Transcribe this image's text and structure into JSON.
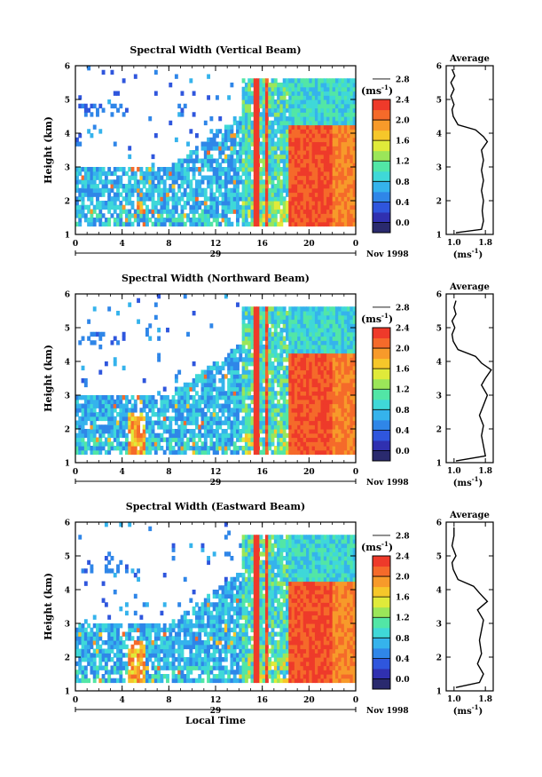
{
  "chart_data": [
    {
      "type": "heatmap",
      "title": "Spectral Width (Vertical Beam)",
      "ylabel": "Height (km)",
      "xlim": [
        0,
        24
      ],
      "ylim": [
        1,
        6
      ],
      "x_ticks": [
        "0",
        "4",
        "8",
        "12",
        "16",
        "20",
        "0"
      ],
      "y_ticks": [
        "1",
        "2",
        "3",
        "4",
        "5",
        "6"
      ],
      "date_label": "29",
      "month_year_label": "Nov 1998",
      "colorbar": {
        "unit": "(ms",
        "unit_exp": "-1",
        "unit_close": ")",
        "ticks": [
          "0.0",
          "0.4",
          "0.8",
          "1.2",
          "1.6",
          "2.0",
          "2.4",
          "2.8"
        ]
      },
      "average_profile": {
        "title": "Average",
        "xlabel": "(ms",
        "xlabel_exp": "-1",
        "xlabel_close": ")",
        "x_ticks": [
          "1.0",
          "1.8"
        ],
        "y_ticks": [
          "1",
          "2",
          "3",
          "4",
          "5",
          "6"
        ],
        "points": [
          [
            1.05,
            1.05
          ],
          [
            1.7,
            1.15
          ],
          [
            1.75,
            1.4
          ],
          [
            1.72,
            1.7
          ],
          [
            1.75,
            2.0
          ],
          [
            1.7,
            2.3
          ],
          [
            1.75,
            2.6
          ],
          [
            1.7,
            2.9
          ],
          [
            1.75,
            3.2
          ],
          [
            1.7,
            3.5
          ],
          [
            1.85,
            3.75
          ],
          [
            1.75,
            3.9
          ],
          [
            1.55,
            4.1
          ],
          [
            1.1,
            4.25
          ],
          [
            0.98,
            4.5
          ],
          [
            0.95,
            4.7
          ],
          [
            1.0,
            4.85
          ],
          [
            0.92,
            5.1
          ],
          [
            1.0,
            5.3
          ],
          [
            0.92,
            5.5
          ],
          [
            1.02,
            5.7
          ],
          [
            0.95,
            5.9
          ]
        ]
      }
    },
    {
      "type": "heatmap",
      "title": "Spectral Width (Northward Beam)",
      "ylabel": "Height (km)",
      "xlim": [
        0,
        24
      ],
      "ylim": [
        1,
        6
      ],
      "x_ticks": [
        "0",
        "4",
        "8",
        "12",
        "16",
        "20",
        "0"
      ],
      "y_ticks": [
        "1",
        "2",
        "3",
        "4",
        "5",
        "6"
      ],
      "date_label": "29",
      "month_year_label": "Nov 1998",
      "colorbar": {
        "unit": "(ms",
        "unit_exp": "-1",
        "unit_close": ")",
        "ticks": [
          "0.0",
          "0.4",
          "0.8",
          "1.2",
          "1.6",
          "2.0",
          "2.4",
          "2.8"
        ]
      },
      "average_profile": {
        "title": "Average",
        "xlabel": "(ms",
        "xlabel_exp": "-1",
        "xlabel_close": ")",
        "x_ticks": [
          "1.0",
          "1.8"
        ],
        "y_ticks": [
          "1",
          "2",
          "3",
          "4",
          "5",
          "6"
        ],
        "points": [
          [
            1.05,
            1.05
          ],
          [
            1.8,
            1.2
          ],
          [
            1.75,
            1.5
          ],
          [
            1.7,
            1.8
          ],
          [
            1.75,
            2.1
          ],
          [
            1.65,
            2.4
          ],
          [
            1.75,
            2.7
          ],
          [
            1.85,
            3.0
          ],
          [
            1.7,
            3.3
          ],
          [
            1.8,
            3.5
          ],
          [
            1.95,
            3.75
          ],
          [
            1.7,
            3.95
          ],
          [
            1.55,
            4.15
          ],
          [
            1.1,
            4.35
          ],
          [
            0.98,
            4.6
          ],
          [
            0.95,
            4.8
          ],
          [
            1.02,
            5.0
          ],
          [
            0.95,
            5.2
          ],
          [
            1.05,
            5.4
          ],
          [
            1.0,
            5.6
          ],
          [
            1.05,
            5.8
          ]
        ]
      }
    },
    {
      "type": "heatmap",
      "title": "Spectral Width (Eastward Beam)",
      "ylabel": "Height (km)",
      "xlabel": "Local Time",
      "xlim": [
        0,
        24
      ],
      "ylim": [
        1,
        6
      ],
      "x_ticks": [
        "0",
        "4",
        "8",
        "12",
        "16",
        "20",
        "0"
      ],
      "y_ticks": [
        "1",
        "2",
        "3",
        "4",
        "5",
        "6"
      ],
      "date_label": "29",
      "month_year_label": "Nov 1998",
      "colorbar": {
        "unit": "(ms",
        "unit_exp": "-1",
        "unit_close": ")",
        "ticks": [
          "0.0",
          "0.4",
          "0.8",
          "1.2",
          "1.6",
          "2.0",
          "2.4",
          "2.8"
        ]
      },
      "average_profile": {
        "title": "Average",
        "xlabel": "(ms",
        "xlabel_exp": "-1",
        "xlabel_close": ")",
        "x_ticks": [
          "1.0",
          "1.8"
        ],
        "y_ticks": [
          "1",
          "2",
          "3",
          "4",
          "5",
          "6"
        ],
        "points": [
          [
            1.05,
            1.1
          ],
          [
            1.65,
            1.25
          ],
          [
            1.75,
            1.5
          ],
          [
            1.6,
            1.8
          ],
          [
            1.7,
            2.1
          ],
          [
            1.65,
            2.5
          ],
          [
            1.7,
            2.8
          ],
          [
            1.75,
            3.1
          ],
          [
            1.6,
            3.4
          ],
          [
            1.85,
            3.65
          ],
          [
            1.65,
            3.9
          ],
          [
            1.5,
            4.1
          ],
          [
            1.1,
            4.3
          ],
          [
            0.98,
            4.6
          ],
          [
            0.95,
            4.8
          ],
          [
            1.05,
            5.0
          ],
          [
            0.95,
            5.3
          ],
          [
            1.0,
            5.6
          ],
          [
            1.0,
            5.85
          ]
        ]
      }
    }
  ]
}
